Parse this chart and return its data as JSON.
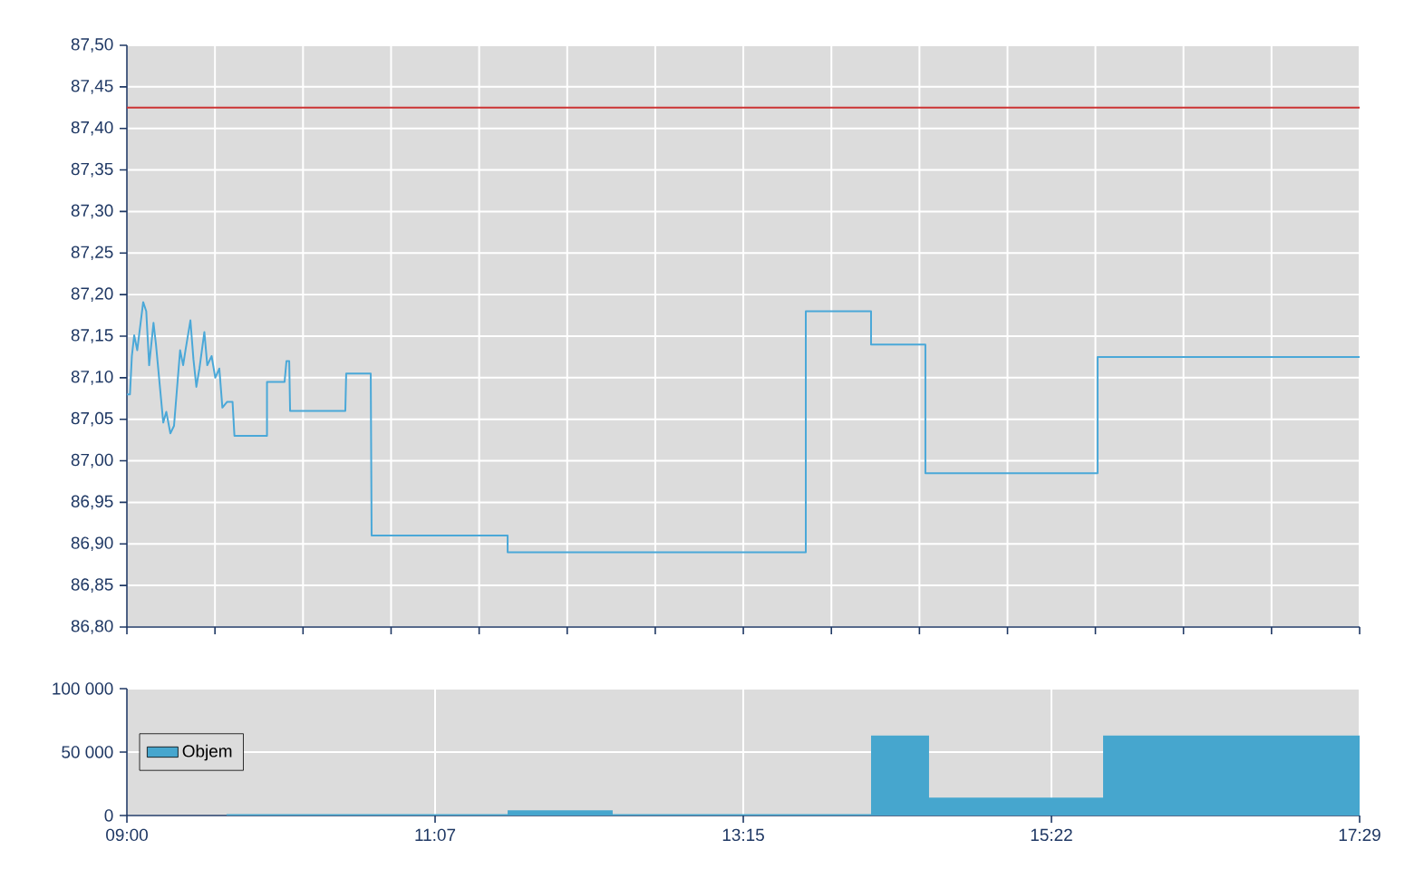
{
  "chart_data": [
    {
      "type": "line",
      "series": [
        {
          "color": "#4aa8d8",
          "x": [
            9.0,
            9.021,
            9.034,
            9.05,
            9.071,
            9.112,
            9.133,
            9.153,
            9.183,
            9.2,
            9.25,
            9.271,
            9.299,
            9.324,
            9.366,
            9.387,
            9.403,
            9.437,
            9.458,
            9.478,
            9.499,
            9.533,
            9.553,
            9.583,
            9.608,
            9.636,
            9.657,
            9.69,
            9.727,
            9.74,
            9.964,
            9.964,
            10.085,
            10.098,
            10.117,
            10.123,
            10.503,
            10.509,
            10.678,
            10.684,
            11.62,
            11.62,
            13.672,
            13.672,
            14.121,
            14.121,
            14.495,
            14.495,
            15.68,
            15.68,
            17.483
          ],
          "values": [
            87.08,
            87.08,
            87.126,
            87.151,
            87.133,
            87.191,
            87.18,
            87.115,
            87.166,
            87.14,
            87.046,
            87.059,
            87.033,
            87.042,
            87.133,
            87.115,
            87.133,
            87.169,
            87.122,
            87.089,
            87.111,
            87.155,
            87.115,
            87.126,
            87.1,
            87.111,
            87.064,
            87.071,
            87.071,
            87.03,
            87.03,
            87.095,
            87.095,
            87.12,
            87.12,
            87.06,
            87.06,
            87.105,
            87.105,
            86.91,
            86.91,
            86.89,
            86.89,
            87.18,
            87.18,
            87.14,
            87.14,
            86.985,
            86.985,
            87.125,
            87.125
          ]
        }
      ],
      "xlim": [
        9.0,
        17.4833
      ],
      "xticks": [
        {
          "value": 9.0,
          "label": null
        },
        {
          "value": 9.606,
          "label": null
        },
        {
          "value": 10.212,
          "label": null
        },
        {
          "value": 10.818,
          "label": null
        },
        {
          "value": 11.424,
          "label": null
        },
        {
          "value": 12.03,
          "label": null
        },
        {
          "value": 12.636,
          "label": null
        },
        {
          "value": 13.242,
          "label": null
        },
        {
          "value": 13.848,
          "label": null
        },
        {
          "value": 14.454,
          "label": null
        },
        {
          "value": 15.06,
          "label": null
        },
        {
          "value": 15.665,
          "label": null
        },
        {
          "value": 16.271,
          "label": null
        },
        {
          "value": 16.877,
          "label": null
        },
        {
          "value": 17.4833,
          "label": null
        }
      ],
      "ylim": [
        86.8,
        87.5
      ],
      "yticks": [
        {
          "value": 86.8,
          "label": "86,80"
        },
        {
          "value": 86.85,
          "label": "86,85"
        },
        {
          "value": 86.9,
          "label": "86,90"
        },
        {
          "value": 86.95,
          "label": "86,95"
        },
        {
          "value": 87.0,
          "label": "87,00"
        },
        {
          "value": 87.05,
          "label": "87,05"
        },
        {
          "value": 87.1,
          "label": "87,10"
        },
        {
          "value": 87.15,
          "label": "87,15"
        },
        {
          "value": 87.2,
          "label": "87,20"
        },
        {
          "value": 87.25,
          "label": "87,25"
        },
        {
          "value": 87.3,
          "label": "87,30"
        },
        {
          "value": 87.35,
          "label": "87,35"
        },
        {
          "value": 87.4,
          "label": "87,40"
        },
        {
          "value": 87.45,
          "label": "87,45"
        },
        {
          "value": 87.5,
          "label": "87,50"
        }
      ],
      "ref_lines": [
        {
          "axis": "y",
          "value": 87.425,
          "color": "#cc3333"
        }
      ],
      "grid": true,
      "marker": "none",
      "line_style": "solid",
      "tick_labels": "y"
    },
    {
      "type": "area",
      "series": [
        {
          "name": "Objem",
          "color": "#46a6ce",
          "x": [
            9.0,
            9.686,
            9.686,
            11.62,
            11.62,
            12.343,
            12.343,
            14.121,
            14.121,
            14.52,
            14.52,
            15.718,
            15.718,
            17.4833
          ],
          "values": [
            0,
            0,
            1000,
            1000,
            4000,
            4000,
            1000,
            1000,
            63000,
            63000,
            14000,
            14000,
            63000,
            63000
          ]
        }
      ],
      "xlim": [
        9.0,
        17.4833
      ],
      "xticks": [
        {
          "value": 9.0,
          "label": "09:00"
        },
        {
          "value": 11.1208,
          "label": "11:07"
        },
        {
          "value": 13.2417,
          "label": "13:15"
        },
        {
          "value": 15.3625,
          "label": "15:22"
        },
        {
          "value": 17.4833,
          "label": "17:29"
        }
      ],
      "ylim": [
        0,
        100000
      ],
      "yticks": [
        0,
        {
          "value": 50000,
          "label": "50 000"
        },
        {
          "value": 100000,
          "label": "100 000"
        }
      ],
      "grid": true,
      "legend": "left"
    }
  ]
}
